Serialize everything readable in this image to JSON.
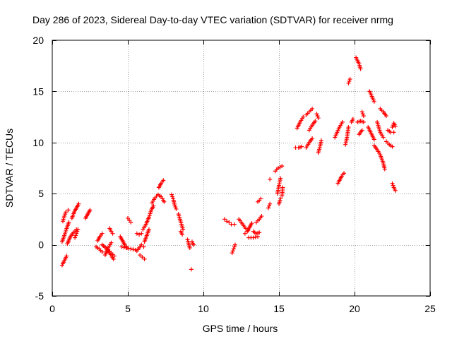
{
  "chart_data": {
    "type": "scatter",
    "title": "Day 286 of 2023, Sidereal Day-to-day VTEC variation (SDTVAR) for receiver nrmg",
    "xlabel": "GPS time / hours",
    "ylabel": "SDTVAR / TECUs",
    "xlim": [
      0,
      25
    ],
    "ylim": [
      -5,
      20
    ],
    "xticks": [
      0,
      5,
      10,
      15,
      20,
      25
    ],
    "yticks": [
      -5,
      0,
      5,
      10,
      15,
      20
    ],
    "grid": true,
    "marker": "+",
    "color": "#ff0000",
    "series": [
      {
        "name": "SDTVAR",
        "segments": [
          [
            [
              0.65,
              -2.0
            ],
            [
              0.75,
              -1.7
            ],
            [
              0.85,
              -1.4
            ],
            [
              0.95,
              -1.1
            ]
          ],
          [
            [
              0.65,
              0.3
            ],
            [
              0.8,
              0.9
            ],
            [
              0.95,
              1.6
            ],
            [
              1.1,
              2.2
            ]
          ],
          [
            [
              0.7,
              2.3
            ],
            [
              0.8,
              2.8
            ],
            [
              0.9,
              3.2
            ],
            [
              1.05,
              3.4
            ]
          ],
          [
            [
              1.0,
              0.1
            ],
            [
              1.2,
              0.8
            ],
            [
              1.4,
              1.2
            ],
            [
              1.6,
              1.5
            ]
          ],
          [
            [
              1.3,
              2.6
            ],
            [
              1.45,
              3.2
            ],
            [
              1.6,
              3.6
            ],
            [
              1.75,
              4.0
            ]
          ],
          [
            [
              1.5,
              0.7
            ],
            [
              1.6,
              1.1
            ],
            [
              1.7,
              1.5
            ]
          ],
          [
            [
              2.2,
              2.6
            ],
            [
              2.35,
              3.0
            ],
            [
              2.5,
              3.4
            ]
          ],
          [
            [
              3.0,
              0.4
            ],
            [
              3.15,
              0.8
            ],
            [
              3.3,
              1.1
            ]
          ],
          [
            [
              2.9,
              -0.2
            ],
            [
              3.1,
              -0.4
            ],
            [
              3.3,
              -0.7
            ]
          ],
          [
            [
              3.3,
              0.0
            ],
            [
              3.55,
              -0.3
            ],
            [
              3.8,
              -0.8
            ],
            [
              4.05,
              -1.4
            ]
          ],
          [
            [
              3.5,
              -1.0
            ],
            [
              3.7,
              -0.3
            ],
            [
              3.9,
              0.2
            ]
          ],
          [
            [
              3.7,
              -0.5
            ],
            [
              3.9,
              -0.8
            ],
            [
              4.1,
              -1.1
            ]
          ],
          [
            [
              3.8,
              1.6
            ],
            [
              3.9,
              1.3
            ],
            [
              4.0,
              1.1
            ]
          ],
          [
            [
              4.5,
              0.8
            ],
            [
              4.65,
              0.4
            ],
            [
              4.8,
              0.0
            ],
            [
              4.95,
              -0.3
            ]
          ],
          [
            [
              4.6,
              -0.2
            ],
            [
              4.9,
              -0.3
            ],
            [
              5.2,
              -0.4
            ],
            [
              5.5,
              -0.5
            ]
          ],
          [
            [
              5.0,
              2.6
            ],
            [
              5.1,
              2.4
            ],
            [
              5.2,
              2.2
            ]
          ],
          [
            [
              5.6,
              -0.6
            ],
            [
              5.75,
              -0.3
            ],
            [
              5.9,
              0.0
            ],
            [
              6.05,
              -0.2
            ]
          ],
          [
            [
              5.8,
              -1.0
            ],
            [
              5.95,
              -1.2
            ],
            [
              6.1,
              -1.4
            ]
          ],
          [
            [
              5.6,
              1.1
            ],
            [
              5.75,
              1.0
            ],
            [
              5.9,
              1.1
            ]
          ],
          [
            [
              6.0,
              1.5
            ],
            [
              6.2,
              2.0
            ],
            [
              6.4,
              2.7
            ],
            [
              6.55,
              3.4
            ],
            [
              6.7,
              3.8
            ]
          ],
          [
            [
              6.1,
              0.3
            ],
            [
              6.25,
              0.9
            ],
            [
              6.4,
              1.5
            ]
          ],
          [
            [
              6.6,
              4.1
            ],
            [
              6.8,
              4.6
            ],
            [
              7.0,
              4.9
            ],
            [
              7.2,
              4.7
            ]
          ],
          [
            [
              7.05,
              5.6
            ],
            [
              7.2,
              6.0
            ],
            [
              7.35,
              6.3
            ]
          ],
          [
            [
              7.3,
              4.5
            ],
            [
              7.4,
              4.2
            ]
          ],
          [
            [
              7.9,
              4.9
            ],
            [
              8.0,
              4.5
            ],
            [
              8.1,
              3.9
            ],
            [
              8.2,
              3.5
            ]
          ],
          [
            [
              8.35,
              3.0
            ],
            [
              8.45,
              2.5
            ],
            [
              8.55,
              2.0
            ],
            [
              8.65,
              1.5
            ]
          ],
          [
            [
              8.5,
              1.3
            ],
            [
              8.6,
              1.0
            ]
          ],
          [
            [
              8.95,
              0.5
            ],
            [
              9.05,
              0.0
            ],
            [
              9.1,
              -0.3
            ]
          ],
          [
            [
              9.25,
              0.3
            ],
            [
              9.35,
              0.0
            ]
          ],
          [
            [
              9.2,
              -2.4
            ]
          ],
          [
            [
              11.4,
              2.5
            ],
            [
              11.55,
              2.3
            ],
            [
              11.7,
              2.2
            ],
            [
              11.85,
              2.0
            ],
            [
              12.05,
              2.0
            ]
          ],
          [
            [
              11.9,
              -0.8
            ],
            [
              12.0,
              -0.4
            ],
            [
              12.1,
              0.0
            ]
          ],
          [
            [
              12.35,
              2.5
            ],
            [
              12.5,
              2.2
            ],
            [
              12.65,
              1.9
            ],
            [
              12.8,
              1.6
            ],
            [
              12.95,
              1.4
            ]
          ],
          [
            [
              12.75,
              1.1
            ],
            [
              12.9,
              1.3
            ],
            [
              13.05,
              1.7
            ],
            [
              13.2,
              2.1
            ]
          ],
          [
            [
              13.0,
              0.7
            ],
            [
              13.3,
              0.7
            ],
            [
              13.6,
              0.8
            ]
          ],
          [
            [
              13.3,
              1.3
            ],
            [
              13.5,
              1.1
            ],
            [
              13.7,
              1.2
            ]
          ],
          [
            [
              13.5,
              2.2
            ],
            [
              13.7,
              2.5
            ],
            [
              13.85,
              2.8
            ]
          ],
          [
            [
              13.6,
              4.2
            ],
            [
              13.8,
              4.5
            ]
          ],
          [
            [
              14.3,
              3.6
            ],
            [
              14.4,
              4.0
            ]
          ],
          [
            [
              14.4,
              6.4
            ]
          ],
          [
            [
              14.75,
              7.2
            ],
            [
              14.95,
              7.5
            ],
            [
              15.2,
              7.7
            ]
          ],
          [
            [
              14.9,
              5.0
            ],
            [
              15.0,
              5.8
            ],
            [
              15.1,
              6.5
            ]
          ],
          [
            [
              15.0,
              4.0
            ],
            [
              15.1,
              4.5
            ]
          ],
          [
            [
              15.2,
              4.8
            ],
            [
              15.25,
              5.6
            ]
          ],
          [
            [
              16.1,
              9.5
            ],
            [
              16.3,
              9.5
            ],
            [
              16.5,
              9.6
            ]
          ],
          [
            [
              16.2,
              11.4
            ],
            [
              16.4,
              12.0
            ],
            [
              16.6,
              12.5
            ]
          ],
          [
            [
              16.8,
              12.7
            ],
            [
              17.0,
              13.0
            ],
            [
              17.2,
              13.3
            ]
          ],
          [
            [
              17.0,
              11.2
            ],
            [
              17.2,
              11.7
            ],
            [
              17.4,
              12.1
            ]
          ],
          [
            [
              16.8,
              9.5
            ],
            [
              17.0,
              10.0
            ],
            [
              17.2,
              10.4
            ]
          ],
          [
            [
              17.5,
              12.8
            ],
            [
              17.6,
              12.4
            ]
          ],
          [
            [
              17.6,
              9.0
            ],
            [
              17.7,
              9.5
            ],
            [
              17.8,
              10.2
            ]
          ],
          [
            [
              18.7,
              10.5
            ],
            [
              18.85,
              11.0
            ],
            [
              19.0,
              11.5
            ],
            [
              19.2,
              12.0
            ]
          ],
          [
            [
              18.9,
              6.0
            ],
            [
              19.0,
              6.3
            ],
            [
              19.15,
              6.7
            ],
            [
              19.3,
              7.0
            ]
          ],
          [
            [
              19.4,
              9.8
            ],
            [
              19.5,
              10.5
            ],
            [
              19.6,
              11.5
            ]
          ],
          [
            [
              19.6,
              15.8
            ],
            [
              19.7,
              16.2
            ]
          ],
          [
            [
              19.8,
              12.0
            ],
            [
              19.9,
              12.3
            ]
          ],
          [
            [
              20.1,
              18.3
            ],
            [
              20.3,
              17.7
            ],
            [
              20.4,
              17.2
            ]
          ],
          [
            [
              20.2,
              12.0
            ],
            [
              20.4,
              12.1
            ],
            [
              20.6,
              12.0
            ]
          ],
          [
            [
              20.3,
              10.8
            ],
            [
              20.5,
              11.2
            ]
          ],
          [
            [
              20.5,
              13.0
            ],
            [
              20.6,
              12.6
            ]
          ],
          [
            [
              20.9,
              11.5
            ],
            [
              21.1,
              10.9
            ],
            [
              21.3,
              10.3
            ]
          ],
          [
            [
              21.0,
              15.0
            ],
            [
              21.15,
              14.5
            ],
            [
              21.3,
              14.0
            ]
          ],
          [
            [
              21.3,
              9.7
            ],
            [
              21.5,
              9.3
            ],
            [
              21.7,
              8.8
            ],
            [
              21.9,
              8.0
            ],
            [
              22.0,
              7.4
            ]
          ],
          [
            [
              21.5,
              12.0
            ],
            [
              21.7,
              11.0
            ],
            [
              21.9,
              10.5
            ]
          ],
          [
            [
              21.7,
              13.3
            ],
            [
              21.9,
              13.0
            ],
            [
              22.1,
              12.6
            ]
          ],
          [
            [
              22.2,
              11.2
            ],
            [
              22.4,
              11.0
            ],
            [
              22.6,
              11.0
            ]
          ],
          [
            [
              22.1,
              10.1
            ],
            [
              22.3,
              9.8
            ],
            [
              22.5,
              9.6
            ]
          ],
          [
            [
              22.5,
              11.5
            ],
            [
              22.6,
              11.9
            ],
            [
              22.7,
              11.6
            ]
          ],
          [
            [
              22.5,
              6.0
            ],
            [
              22.6,
              5.6
            ],
            [
              22.7,
              5.3
            ]
          ]
        ]
      }
    ]
  }
}
